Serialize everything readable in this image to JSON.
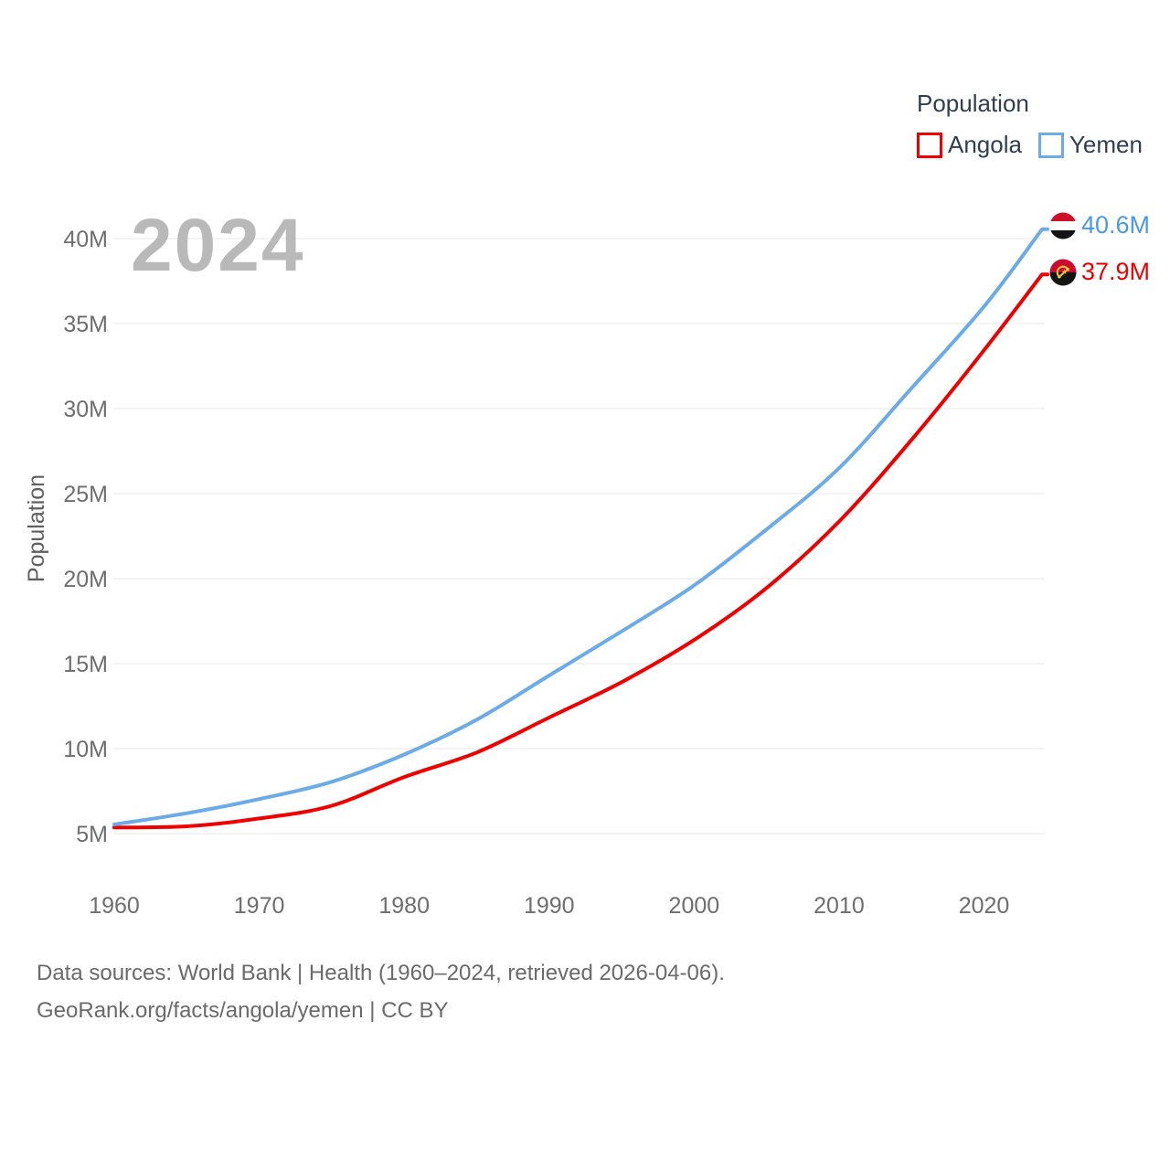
{
  "legend": {
    "title": "Population",
    "items": [
      {
        "label": "Angola",
        "color": "#ee0000"
      },
      {
        "label": "Yemen",
        "color": "#6babe7"
      }
    ]
  },
  "watermark_year": "2024",
  "chart_data": {
    "type": "line",
    "title": "Population",
    "xlabel": "",
    "ylabel": "Population",
    "grid": true,
    "legend_position": "top-right",
    "xlim": [
      1960,
      2024
    ],
    "ylim": [
      5000000,
      41000000
    ],
    "xticks": [
      1960,
      1970,
      1980,
      1990,
      2000,
      2010,
      2020
    ],
    "yticks": [
      5,
      10,
      15,
      20,
      25,
      30,
      35,
      40
    ],
    "ytick_suffix": "M",
    "series": [
      {
        "name": "Angola",
        "color": "#ee0000",
        "end_label": "37.9M",
        "flag_icon": "angola-flag",
        "points": [
          [
            1960,
            5.36
          ],
          [
            1965,
            5.43
          ],
          [
            1970,
            5.89
          ],
          [
            1975,
            6.64
          ],
          [
            1980,
            8.33
          ],
          [
            1985,
            9.77
          ],
          [
            1990,
            11.83
          ],
          [
            1995,
            13.91
          ],
          [
            2000,
            16.39
          ],
          [
            2005,
            19.45
          ],
          [
            2010,
            23.36
          ],
          [
            2015,
            28.16
          ],
          [
            2020,
            33.43
          ],
          [
            2024,
            37.89
          ]
        ]
      },
      {
        "name": "Yemen",
        "color": "#6babe7",
        "end_label": "40.6M",
        "flag_icon": "yemen-flag",
        "points": [
          [
            1960,
            5.54
          ],
          [
            1965,
            6.2
          ],
          [
            1970,
            7.03
          ],
          [
            1975,
            8.05
          ],
          [
            1980,
            9.65
          ],
          [
            1985,
            11.7
          ],
          [
            1990,
            14.3
          ],
          [
            1995,
            16.9
          ],
          [
            2000,
            19.6
          ],
          [
            2005,
            22.9
          ],
          [
            2010,
            26.5
          ],
          [
            2015,
            31.2
          ],
          [
            2020,
            36.0
          ],
          [
            2024,
            40.55
          ]
        ]
      }
    ],
    "unit": "millions"
  },
  "footer": {
    "line1": "Data sources: World Bank | Health (1960–2024, retrieved 2026-04-06).",
    "line2": "GeoRank.org/facts/angola/yemen | CC BY"
  }
}
